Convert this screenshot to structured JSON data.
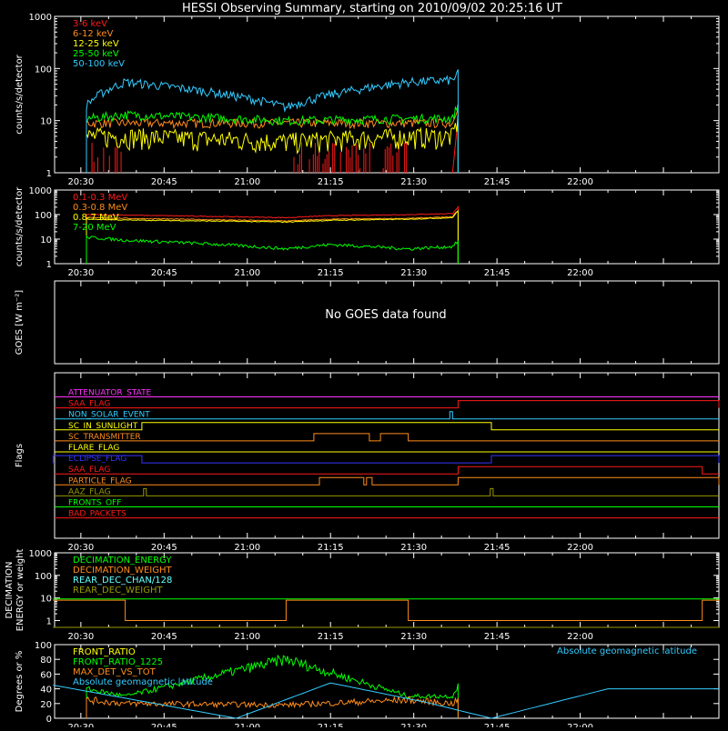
{
  "title": "HESSI Observing Summary, starting on 2010/09/02 20:25:16 UT",
  "colors": {
    "background": "#000000",
    "axes": "#ffffff",
    "red": "#ff1a1a",
    "orange": "#ff8c1a",
    "yellow": "#ffff00",
    "green": "#00ff00",
    "cyan": "#33ccff",
    "magenta": "#ff33ff",
    "blue": "#3333ff",
    "olive": "#999900",
    "lightcyan": "#66ffff"
  },
  "time_axis": {
    "start": "20:25:16",
    "tick_labels": [
      "20:30",
      "20:45",
      "21:00",
      "21:15",
      "21:30",
      "21:45",
      "22:00"
    ]
  },
  "chart_data": [
    {
      "type": "line",
      "id": "panel1",
      "ylabel": "counts/s/detector",
      "yscale": "log",
      "ylim": [
        1,
        1000
      ],
      "ytick_labels": [
        "1",
        "10",
        "100",
        "1000"
      ],
      "legend_position": "top-left",
      "series": [
        {
          "name": "3-6 keV",
          "color": "red",
          "shape": "bursts",
          "x": [
            "20:32",
            "20:36",
            "20:38",
            "21:07",
            "21:29",
            "21:37",
            "21:38"
          ],
          "y": [
            1,
            1,
            4,
            1,
            1,
            1,
            12
          ]
        },
        {
          "name": "6-12 keV",
          "color": "orange",
          "x": [
            "20:31",
            "20:38",
            "21:07",
            "21:29",
            "21:37",
            "21:38"
          ],
          "y": [
            9,
            9,
            9,
            9,
            9,
            20
          ]
        },
        {
          "name": "12-25 keV",
          "color": "yellow",
          "x": [
            "20:31",
            "20:38",
            "21:07",
            "21:29",
            "21:37",
            "21:38"
          ],
          "y": [
            5,
            5,
            4,
            5,
            5,
            10
          ]
        },
        {
          "name": "25-50 keV",
          "color": "green",
          "x": [
            "20:31",
            "20:38",
            "21:07",
            "21:29",
            "21:37",
            "21:38"
          ],
          "y": [
            11,
            13,
            10,
            11,
            11,
            20
          ]
        },
        {
          "name": "50-100 keV",
          "color": "cyan",
          "x": [
            "20:31",
            "20:38",
            "21:07",
            "21:29",
            "21:37",
            "21:38"
          ],
          "y": [
            20,
            55,
            18,
            55,
            60,
            80
          ]
        }
      ]
    },
    {
      "type": "line",
      "id": "panel2",
      "ylabel": "counts/s/detector",
      "yscale": "log",
      "ylim": [
        1,
        1000
      ],
      "ytick_labels": [
        "1",
        "10",
        "100",
        "1000"
      ],
      "legend_position": "top-left",
      "series": [
        {
          "name": "0.1-0.3 MeV",
          "color": "red",
          "x": [
            "20:31",
            "20:38",
            "21:07",
            "21:15",
            "21:29",
            "21:37",
            "21:38"
          ],
          "y": [
            100,
            95,
            75,
            90,
            100,
            110,
            200
          ]
        },
        {
          "name": "0.3-0.8 MeV",
          "color": "orange",
          "x": [
            "20:31",
            "20:38",
            "21:07",
            "21:15",
            "21:29",
            "21:37",
            "21:38"
          ],
          "y": [
            75,
            70,
            55,
            65,
            70,
            80,
            150
          ]
        },
        {
          "name": "0.8-7 MeV",
          "color": "yellow",
          "x": [
            "20:31",
            "20:38",
            "21:07",
            "21:15",
            "21:29",
            "21:37",
            "21:38"
          ],
          "y": [
            65,
            60,
            50,
            58,
            65,
            75,
            140
          ]
        },
        {
          "name": "7-20 MeV",
          "color": "green",
          "x": [
            "20:31",
            "20:38",
            "21:07",
            "21:15",
            "21:29",
            "21:37",
            "21:38"
          ],
          "y": [
            12,
            9,
            4,
            6,
            4,
            5,
            8
          ]
        }
      ]
    },
    {
      "type": "line",
      "id": "panel3",
      "ylabel": "GOES [W m⁻²]",
      "message": "No GOES data found",
      "series": []
    },
    {
      "type": "line",
      "id": "panel4",
      "ylabel": "Flags",
      "flags": [
        {
          "name": "ATTENUATOR_STATE",
          "color": "magenta",
          "on": []
        },
        {
          "name": "SAA_FLAG",
          "color": "red",
          "on": [
            [
              "21:38",
              "22:25"
            ]
          ]
        },
        {
          "name": "NON_SOLAR_EVENT",
          "color": "cyan",
          "on": [
            [
              "21:36.5",
              "21:37"
            ]
          ]
        },
        {
          "name": "SC_IN_SUNLIGHT",
          "color": "yellow",
          "on": [
            [
              "20:41",
              "21:44"
            ]
          ]
        },
        {
          "name": "SC_TRANSMITTER",
          "color": "orange",
          "on": [
            [
              "21:12",
              "21:22"
            ],
            [
              "21:24",
              "21:29"
            ]
          ]
        },
        {
          "name": "FLARE_FLAG",
          "color": "yellow",
          "on": []
        },
        {
          "name": "ECLIPSE_FLAG",
          "color": "blue",
          "on": [
            [
              "20:25",
              "20:41"
            ],
            [
              "21:44",
              "22:25"
            ]
          ]
        },
        {
          "name": "SAA_FLAG",
          "color": "red",
          "on": [
            [
              "21:38",
              "22:22"
            ]
          ]
        },
        {
          "name": "PARTICLE_FLAG",
          "color": "orange",
          "on": [
            [
              "21:13",
              "21:21"
            ],
            [
              "21:21.5",
              "21:22.5"
            ],
            [
              "21:38",
              "22:25"
            ]
          ]
        },
        {
          "name": "AAZ_FLAG",
          "color": "olive",
          "on": [
            [
              "20:41.3",
              "20:41.8"
            ],
            [
              "21:43.8",
              "21:44.3"
            ]
          ]
        },
        {
          "name": "FRONTS_OFF",
          "color": "green",
          "on": []
        },
        {
          "name": "BAD_PACKETS",
          "color": "red",
          "on": []
        }
      ]
    },
    {
      "type": "line",
      "id": "panel5",
      "ylabel": "DECIMATION ENERGY or weight",
      "yscale": "log",
      "ylim": [
        0.5,
        1000
      ],
      "ytick_labels": [
        "1",
        "10",
        "100",
        "1000"
      ],
      "legend_position": "top-left",
      "series": [
        {
          "name": "DECIMATION_ENERGY",
          "color": "green",
          "x": [
            "20:25",
            "22:25"
          ],
          "y": [
            9,
            9
          ]
        },
        {
          "name": "DECIMATION_WEIGHT",
          "color": "orange",
          "x": [
            "20:25",
            "20:38",
            "20:38",
            "21:07",
            "21:07",
            "21:29",
            "21:29",
            "22:22",
            "22:22",
            "22:25"
          ],
          "y": [
            8,
            8,
            1,
            1,
            8,
            8,
            1,
            1,
            8,
            8
          ]
        },
        {
          "name": "REAR_DEC_CHAN/128",
          "color": "lightcyan",
          "x": [
            "20:25",
            "22:25"
          ],
          "y": [
            0.5,
            0.5
          ]
        },
        {
          "name": "REAR_DEC_WEIGHT",
          "color": "olive",
          "x": [
            "20:25",
            "22:25"
          ],
          "y": [
            0.5,
            0.5
          ]
        }
      ]
    },
    {
      "type": "line",
      "id": "panel6",
      "ylabel": "Degrees or %",
      "ylim": [
        0,
        100
      ],
      "ytick_labels": [
        "0",
        "20",
        "40",
        "60",
        "80",
        "100"
      ],
      "legend_position": "top-left",
      "annotation": "Absolute geomagnetic latitude",
      "series": [
        {
          "name": "FRONT_RATIO",
          "color": "yellow",
          "x": [],
          "y": []
        },
        {
          "name": "FRONT_RATIO_1225",
          "color": "green",
          "x": [
            "20:31",
            "20:38",
            "21:07",
            "21:29",
            "21:37",
            "21:38"
          ],
          "y": [
            40,
            30,
            80,
            30,
            30,
            45
          ]
        },
        {
          "name": "MAX_DET_VS_TOT",
          "color": "orange",
          "x": [
            "20:31",
            "20:38",
            "21:07",
            "21:29",
            "21:37",
            "21:38"
          ],
          "y": [
            25,
            20,
            18,
            25,
            20,
            25
          ]
        },
        {
          "name": "Absolute geomagnetic latitude",
          "color": "cyan",
          "x": [
            "20:25",
            "20:36",
            "20:58",
            "21:15",
            "21:32",
            "21:44",
            "22:05",
            "22:25"
          ],
          "y": [
            45,
            30,
            0,
            48,
            22,
            0,
            40,
            40
          ]
        }
      ]
    }
  ]
}
